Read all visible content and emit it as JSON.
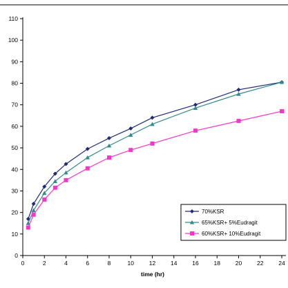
{
  "chart_data": {
    "type": "line",
    "title": "",
    "xlabel": "time (hr)",
    "ylabel": "",
    "xlim": [
      0,
      24
    ],
    "ylim": [
      0,
      110
    ],
    "xticks": [
      0,
      2,
      4,
      6,
      8,
      10,
      12,
      14,
      16,
      18,
      20,
      22,
      24
    ],
    "yticks": [
      0,
      10,
      20,
      30,
      40,
      50,
      60,
      70,
      80,
      90,
      100,
      110
    ],
    "grid": false,
    "legend_position": "bottom-right",
    "series": [
      {
        "name": "70%KSR",
        "color": "#1f2a78",
        "marker": "diamond",
        "x": [
          0.5,
          1,
          2,
          3,
          4,
          6,
          8,
          10,
          12,
          16,
          20,
          24
        ],
        "y": [
          17,
          24,
          32,
          38,
          42.5,
          49.5,
          54.5,
          59,
          64,
          70,
          77,
          80.5
        ]
      },
      {
        "name": "65%KSR+ 5%Eudragit",
        "color": "#2e8b8b",
        "marker": "triangle",
        "x": [
          0.5,
          1,
          2,
          3,
          4,
          6,
          8,
          10,
          12,
          16,
          20,
          24
        ],
        "y": [
          15,
          21,
          29,
          34.5,
          38.5,
          45.5,
          51,
          56,
          61,
          68.5,
          75,
          80.5
        ]
      },
      {
        "name": "60%KSR+ 10%Eudragit",
        "color": "#ff33cc",
        "marker": "square",
        "x": [
          0.5,
          1,
          2,
          3,
          4,
          6,
          8,
          10,
          12,
          16,
          20,
          24
        ],
        "y": [
          13,
          19,
          26,
          31.5,
          35,
          40.5,
          45.5,
          49,
          52,
          58,
          62.5,
          67
        ]
      }
    ]
  }
}
